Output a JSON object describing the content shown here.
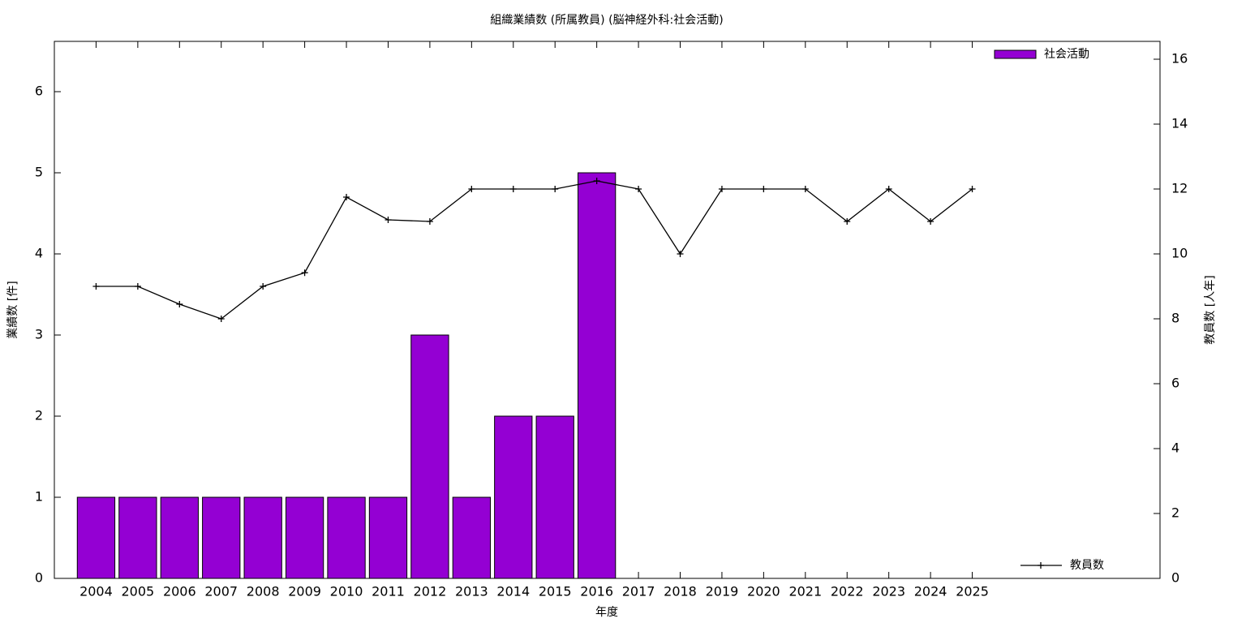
{
  "chart_data": {
    "type": "bar_line",
    "title": "組織業績数 (所属教員) (脳神経外科:社会活動)",
    "x_label": "年度",
    "y_label": "業績数 [件]",
    "y2_label": "教員数 [人年]",
    "categories": [
      "2004",
      "2005",
      "2006",
      "2007",
      "2008",
      "2009",
      "2010",
      "2011",
      "2012",
      "2013",
      "2014",
      "2015",
      "2016",
      "2017",
      "2018",
      "2019",
      "2020",
      "2021",
      "2022",
      "2023",
      "2024",
      "2025"
    ],
    "series": [
      {
        "name": "社会活動",
        "type": "bar",
        "color": "#9400d3",
        "values": [
          1,
          1,
          1,
          1,
          1,
          1,
          1,
          1,
          3,
          1,
          2,
          2,
          5,
          null,
          null,
          null,
          null,
          null,
          null,
          null,
          null,
          null
        ]
      },
      {
        "name": "教員数",
        "type": "line",
        "axis": "y2",
        "color": "#000000",
        "values": [
          9,
          9,
          8.45,
          8,
          9,
          9.42,
          11.75,
          11.05,
          11,
          12,
          12,
          12,
          12.25,
          12,
          10,
          12,
          12,
          12,
          11,
          12,
          11,
          12
        ]
      }
    ],
    "ylim": [
      0,
      6.62
    ],
    "yticks": [
      0,
      1,
      2,
      3,
      4,
      5,
      6
    ],
    "y2lim": [
      0,
      16.55
    ],
    "y2ticks": [
      0,
      2,
      4,
      6,
      8,
      10,
      12,
      14,
      16
    ],
    "legend": "upper-right"
  }
}
